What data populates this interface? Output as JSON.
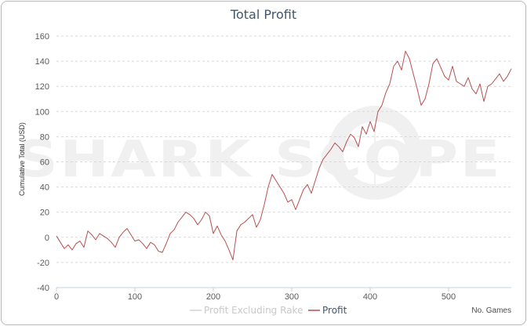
{
  "chart_data": {
    "type": "line",
    "title": "Total Profit",
    "ylabel": "Cumulative Total (USD)",
    "xlabel": "No. Games",
    "xlim": [
      0,
      580
    ],
    "ylim": [
      -40,
      160
    ],
    "xticks": [
      0,
      100,
      200,
      300,
      400,
      500
    ],
    "yticks": [
      -40,
      -20,
      0,
      20,
      40,
      60,
      80,
      100,
      120,
      140,
      160
    ],
    "grid": "horizontal dashed",
    "watermark": "SHARK SCOPE",
    "legend": {
      "position": "bottom-center",
      "entries": [
        {
          "label": "Profit Excluding Rake",
          "color": "#d3d3d3",
          "visible": false
        },
        {
          "label": "Profit",
          "color": "#b84f4f",
          "visible": true
        }
      ]
    },
    "series": [
      {
        "name": "Profit",
        "color": "#b84f4f",
        "x": [
          0,
          5,
          10,
          15,
          20,
          25,
          30,
          35,
          40,
          45,
          50,
          55,
          60,
          65,
          70,
          75,
          80,
          85,
          90,
          95,
          100,
          105,
          110,
          115,
          120,
          125,
          130,
          135,
          140,
          145,
          150,
          155,
          160,
          165,
          170,
          175,
          180,
          185,
          190,
          195,
          200,
          205,
          210,
          215,
          220,
          225,
          230,
          235,
          240,
          245,
          250,
          255,
          260,
          265,
          270,
          275,
          280,
          285,
          290,
          295,
          300,
          305,
          310,
          315,
          320,
          325,
          330,
          335,
          340,
          345,
          350,
          355,
          360,
          365,
          370,
          375,
          380,
          385,
          390,
          395,
          400,
          405,
          410,
          415,
          420,
          425,
          430,
          435,
          440,
          445,
          450,
          455,
          460,
          465,
          470,
          475,
          480,
          485,
          490,
          495,
          500,
          505,
          510,
          515,
          520,
          525,
          530,
          535,
          540,
          545,
          550,
          555,
          560,
          565,
          570,
          575,
          580
        ],
        "values": [
          1,
          -4,
          -9,
          -6,
          -10,
          -5,
          -3,
          -8,
          5,
          2,
          -2,
          3,
          1,
          -1,
          -4,
          -8,
          0,
          4,
          7,
          2,
          -3,
          -2,
          -5,
          -9,
          -4,
          -6,
          -11,
          -12,
          -5,
          3,
          6,
          12,
          16,
          20,
          18,
          15,
          10,
          14,
          20,
          17,
          3,
          9,
          2,
          -3,
          -10,
          -18,
          5,
          10,
          12,
          15,
          18,
          8,
          14,
          26,
          40,
          50,
          45,
          40,
          35,
          28,
          30,
          22,
          30,
          38,
          42,
          35,
          45,
          55,
          62,
          66,
          70,
          75,
          72,
          68,
          76,
          82,
          79,
          72,
          88,
          82,
          92,
          84,
          100,
          105,
          115,
          122,
          136,
          140,
          133,
          148,
          142,
          130,
          118,
          105,
          110,
          122,
          138,
          142,
          135,
          128,
          125,
          136,
          124,
          122,
          120,
          127,
          118,
          114,
          122,
          108,
          120,
          122,
          126,
          130,
          124,
          128,
          134
        ]
      }
    ]
  }
}
